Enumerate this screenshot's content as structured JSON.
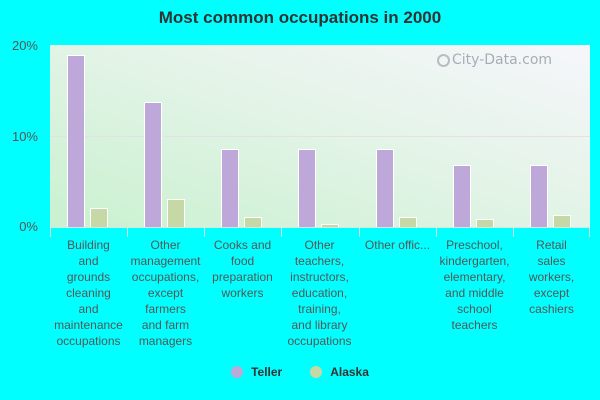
{
  "title": "Most common occupations in 2000",
  "watermark": "City-Data.com",
  "y_ticks": [
    "20%",
    "10%",
    "0%"
  ],
  "legend": [
    {
      "label": "Teller",
      "color": "#bda8d9"
    },
    {
      "label": "Alaska",
      "color": "#c5d8a6"
    }
  ],
  "x_labels": [
    "Building\nand\ngrounds\ncleaning\nand\nmaintenance\noccupations",
    "Other\nmanagement\noccupations,\nexcept\nfarmers\nand farm\nmanagers",
    "Cooks and\nfood\npreparation\nworkers",
    "Other\nteachers,\ninstructors,\neducation,\ntraining,\nand library\noccupations",
    "Other offic...",
    "Preschool,\nkindergarten,\nelementary,\nand middle\nschool\nteachers",
    "Retail\nsales\nworkers,\nexcept\ncashiers"
  ],
  "chart_data": {
    "type": "bar",
    "title": "Most common occupations in 2000",
    "xlabel": "",
    "ylabel": "",
    "ylim": [
      0,
      20
    ],
    "y_tick_labels": [
      "0%",
      "10%",
      "20%"
    ],
    "grid": true,
    "legend_position": "bottom",
    "categories": [
      "Building and grounds cleaning and maintenance occupations",
      "Other management occupations, except farmers and farm managers",
      "Cooks and food preparation workers",
      "Other teachers, instructors, education, training, and library occupations",
      "Other offic...",
      "Preschool, kindergarten, elementary, and middle school teachers",
      "Retail sales workers, except cashiers"
    ],
    "series": [
      {
        "name": "Teller",
        "color": "#bda8d9",
        "values": [
          18.9,
          13.7,
          8.6,
          8.6,
          8.6,
          6.8,
          6.8
        ]
      },
      {
        "name": "Alaska",
        "color": "#c5d8a6",
        "values": [
          2.1,
          3.1,
          1.1,
          0.3,
          1.1,
          0.9,
          1.3
        ]
      }
    ]
  }
}
